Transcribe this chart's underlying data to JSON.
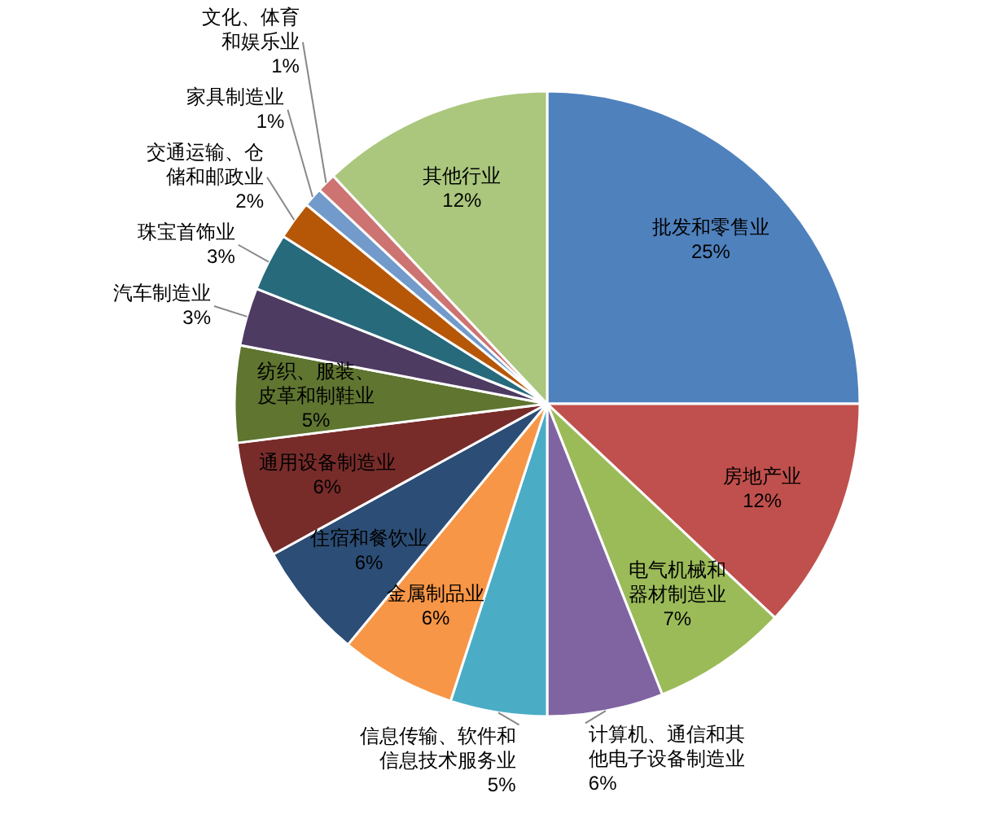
{
  "chart_data": {
    "type": "pie",
    "categories": [
      "批发和零售业",
      "房地产业",
      "电气机械和器材制造业",
      "计算机、通信和其他电子设备制造业",
      "信息传输、软件和信息技术服务业",
      "金属制品业",
      "住宿和餐饮业",
      "通用设备制造业",
      "纺织、服装、皮革和制鞋业",
      "汽车制造业",
      "珠宝首饰业",
      "交通运输、仓储和邮政业",
      "家具制造业",
      "文化、体育和娱乐业",
      "其他行业"
    ],
    "values": [
      25,
      12,
      7,
      6,
      5,
      6,
      6,
      6,
      5,
      3,
      3,
      2,
      1,
      1,
      12
    ],
    "colors": [
      "#4f81bd",
      "#c0504d",
      "#9bbb59",
      "#8064a2",
      "#4bacc6",
      "#f79646",
      "#2c4d75",
      "#772c2a",
      "#5f7530",
      "#4d3b62",
      "#276a7c",
      "#b65708",
      "#729aca",
      "#cd7371",
      "#aac77d"
    ],
    "value_labels": [
      "25%",
      "12%",
      "7%",
      "6%",
      "5%",
      "6%",
      "6%",
      "6%",
      "5%",
      "3%",
      "3%",
      "2%",
      "1%",
      "1%",
      "12%"
    ]
  }
}
